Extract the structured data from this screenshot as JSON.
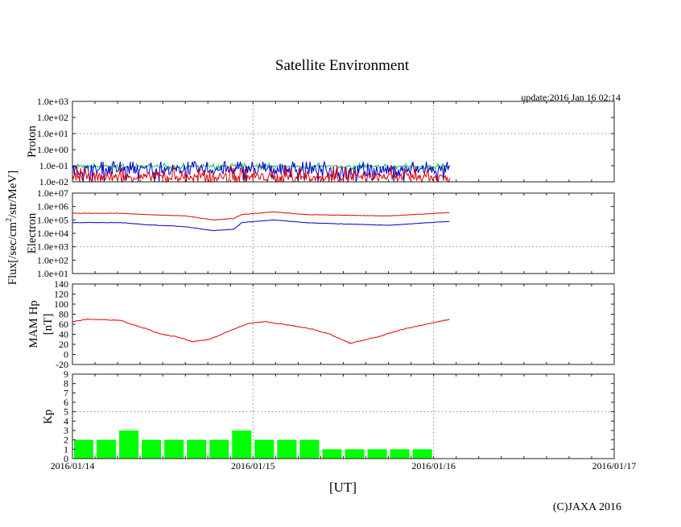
{
  "chart_data": [
    {
      "type": "line",
      "panel": "proton",
      "title": "Satellite Environment",
      "update": "update:2016 Jan 16 02:14",
      "ylabel": "Proton",
      "yscale": "log",
      "ylim_log10": [
        -2,
        3
      ],
      "yticks": [
        "1.0e-02",
        "1.0e-01",
        "1.0e+00",
        "1.0e+01",
        "1.0e+02",
        "1.0e+03"
      ],
      "grid_y_log10": 1,
      "series": [
        {
          "name": "proton-green",
          "color": "#20c060",
          "base_log10": -1.05,
          "noise": 0.15
        },
        {
          "name": "proton-blue",
          "color": "#0000d0",
          "base_log10": -1.25,
          "noise": 0.6
        },
        {
          "name": "proton-red",
          "color": "#e00000",
          "base_log10": -1.7,
          "noise": 0.5
        }
      ]
    },
    {
      "type": "line",
      "panel": "electron",
      "ylabel": "Electron",
      "yscale": "log",
      "ylim_log10": [
        1,
        7
      ],
      "yticks": [
        "1.0e+01",
        "1.0e+02",
        "1.0e+03",
        "1.0e+04",
        "1.0e+05",
        "1.0e+06",
        "1.0e+07"
      ],
      "grid_y_log10": 3,
      "series": [
        {
          "name": "electron-red",
          "color": "#e00000",
          "hours": [
            0,
            6.4,
            9.6,
            15,
            18.7,
            21.4,
            22.5,
            26.7,
            31,
            36,
            42,
            50.2
          ],
          "log10": [
            5.5,
            5.5,
            5.4,
            5.3,
            5.0,
            5.1,
            5.4,
            5.6,
            5.4,
            5.35,
            5.3,
            5.55
          ]
        },
        {
          "name": "electron-blue",
          "color": "#0000d0",
          "hours": [
            0,
            6.4,
            9.6,
            15,
            18.7,
            21.4,
            22.5,
            26.7,
            31,
            36,
            42,
            50.2
          ],
          "log10": [
            4.8,
            4.8,
            4.65,
            4.5,
            4.2,
            4.3,
            4.8,
            5.0,
            4.8,
            4.7,
            4.6,
            4.9
          ]
        }
      ]
    },
    {
      "type": "line",
      "panel": "hp",
      "ylabel": "MAM Hp",
      "ylabel2": "[nT]",
      "ylim": [
        -20,
        140
      ],
      "yticks": [
        "-20",
        "0",
        "20",
        "40",
        "60",
        "80",
        "100",
        "120",
        "140"
      ],
      "series": [
        {
          "name": "hp",
          "color": "#e00000",
          "hours": [
            0,
            2,
            6.4,
            7.5,
            9.6,
            11.8,
            13.9,
            16,
            18.2,
            21.4,
            23.5,
            25.7,
            28.9,
            32,
            34.2,
            36.9,
            40.6,
            43.9,
            47,
            50.2
          ],
          "values": [
            65,
            70,
            68,
            62,
            52,
            40,
            35,
            25,
            30,
            50,
            62,
            65,
            58,
            50,
            40,
            22,
            35,
            50,
            60,
            70
          ]
        }
      ]
    },
    {
      "type": "bar",
      "panel": "kp",
      "ylabel": "Kp",
      "ylim": [
        0,
        9
      ],
      "yticks": [
        "0",
        "1",
        "2",
        "3",
        "4",
        "5",
        "6",
        "7",
        "8",
        "9"
      ],
      "grid_y": 5,
      "bar_hours": 3,
      "color": "#00ff00",
      "values": [
        2,
        2,
        3,
        2,
        2,
        2,
        2,
        3,
        2,
        2,
        2,
        1,
        1,
        1,
        1,
        1
      ]
    }
  ],
  "xaxis": {
    "label": "[UT]",
    "ticks": [
      "2016/01/14",
      "2016/01/15",
      "2016/01/16",
      "2016/01/17"
    ],
    "range_hours": [
      0,
      72
    ]
  },
  "flux_label": "Flux[/sec/cm",
  "flux_sup": "2",
  "flux_label2": "/str/MeV]",
  "copyright": "(C)JAXA 2016"
}
